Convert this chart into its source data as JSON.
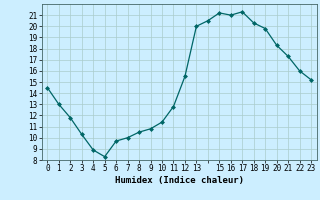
{
  "x": [
    0,
    1,
    2,
    3,
    4,
    5,
    6,
    7,
    8,
    9,
    10,
    11,
    12,
    13,
    14,
    15,
    16,
    17,
    18,
    19,
    20,
    21,
    22,
    23
  ],
  "y": [
    14.5,
    13.0,
    11.8,
    10.3,
    8.9,
    8.3,
    9.7,
    10.0,
    10.5,
    10.8,
    11.4,
    12.8,
    15.5,
    20.0,
    20.5,
    21.2,
    21.0,
    21.3,
    20.3,
    19.8,
    18.3,
    17.3,
    16.0,
    15.2
  ],
  "xlabel": "Humidex (Indice chaleur)",
  "ylabel": "",
  "xlim": [
    -0.5,
    23.5
  ],
  "ylim": [
    8,
    22
  ],
  "yticks": [
    8,
    9,
    10,
    11,
    12,
    13,
    14,
    15,
    16,
    17,
    18,
    19,
    20,
    21
  ],
  "xtick_labels": [
    "0",
    "1",
    "2",
    "3",
    "4",
    "5",
    "6",
    "7",
    "8",
    "9",
    "10",
    "11",
    "12",
    "13",
    "",
    "15",
    "16",
    "17",
    "18",
    "19",
    "20",
    "21",
    "22",
    "23"
  ],
  "line_color": "#006666",
  "marker_color": "#006666",
  "bg_color": "#cceeff",
  "grid_color": "#aacccc",
  "label_fontsize": 6.5,
  "tick_fontsize": 5.5
}
